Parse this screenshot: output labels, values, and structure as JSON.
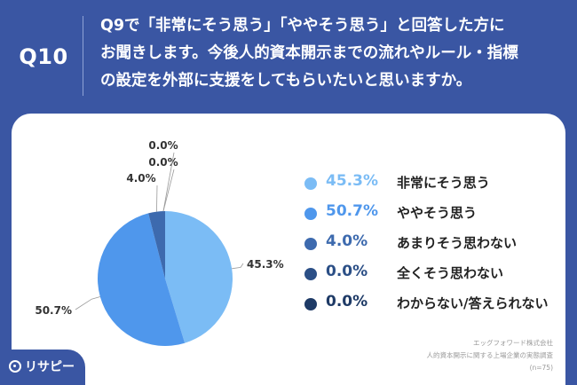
{
  "header": {
    "question_number": "Q10",
    "question_lines": [
      "Q9で「非常にそう思う」「ややそう思う」と回答した方に",
      "お聞きします。今後人的資本開示までの流れやルール・指標",
      "の設定を外部に支援をしてもらいたいと思いますか。"
    ]
  },
  "chart_data": {
    "type": "pie",
    "start_angle_deg": 0,
    "direction": "clockwise",
    "slices": [
      {
        "label": "非常にそう思う",
        "value": 45.3,
        "display": "45.3%",
        "color": "#7bbcf5"
      },
      {
        "label": "ややそう思う",
        "value": 50.7,
        "display": "50.7%",
        "color": "#4f97ec"
      },
      {
        "label": "あまりそう思わない",
        "value": 4.0,
        "display": "4.0%",
        "color": "#3d6aae"
      },
      {
        "label": "全くそう思わない",
        "value": 0.0,
        "display": "0.0%",
        "color": "#2b4f86"
      },
      {
        "label": "わからない/答えられない",
        "value": 0.0,
        "display": "0.0%",
        "color": "#1e3a66"
      }
    ],
    "legend_position": "right"
  },
  "footer": {
    "company": "エッグフォワード株式会社",
    "survey": "人的資本開示に関する上場企業の実態調査",
    "sample": "(n=75)"
  },
  "logo": {
    "text": "リサピー"
  }
}
